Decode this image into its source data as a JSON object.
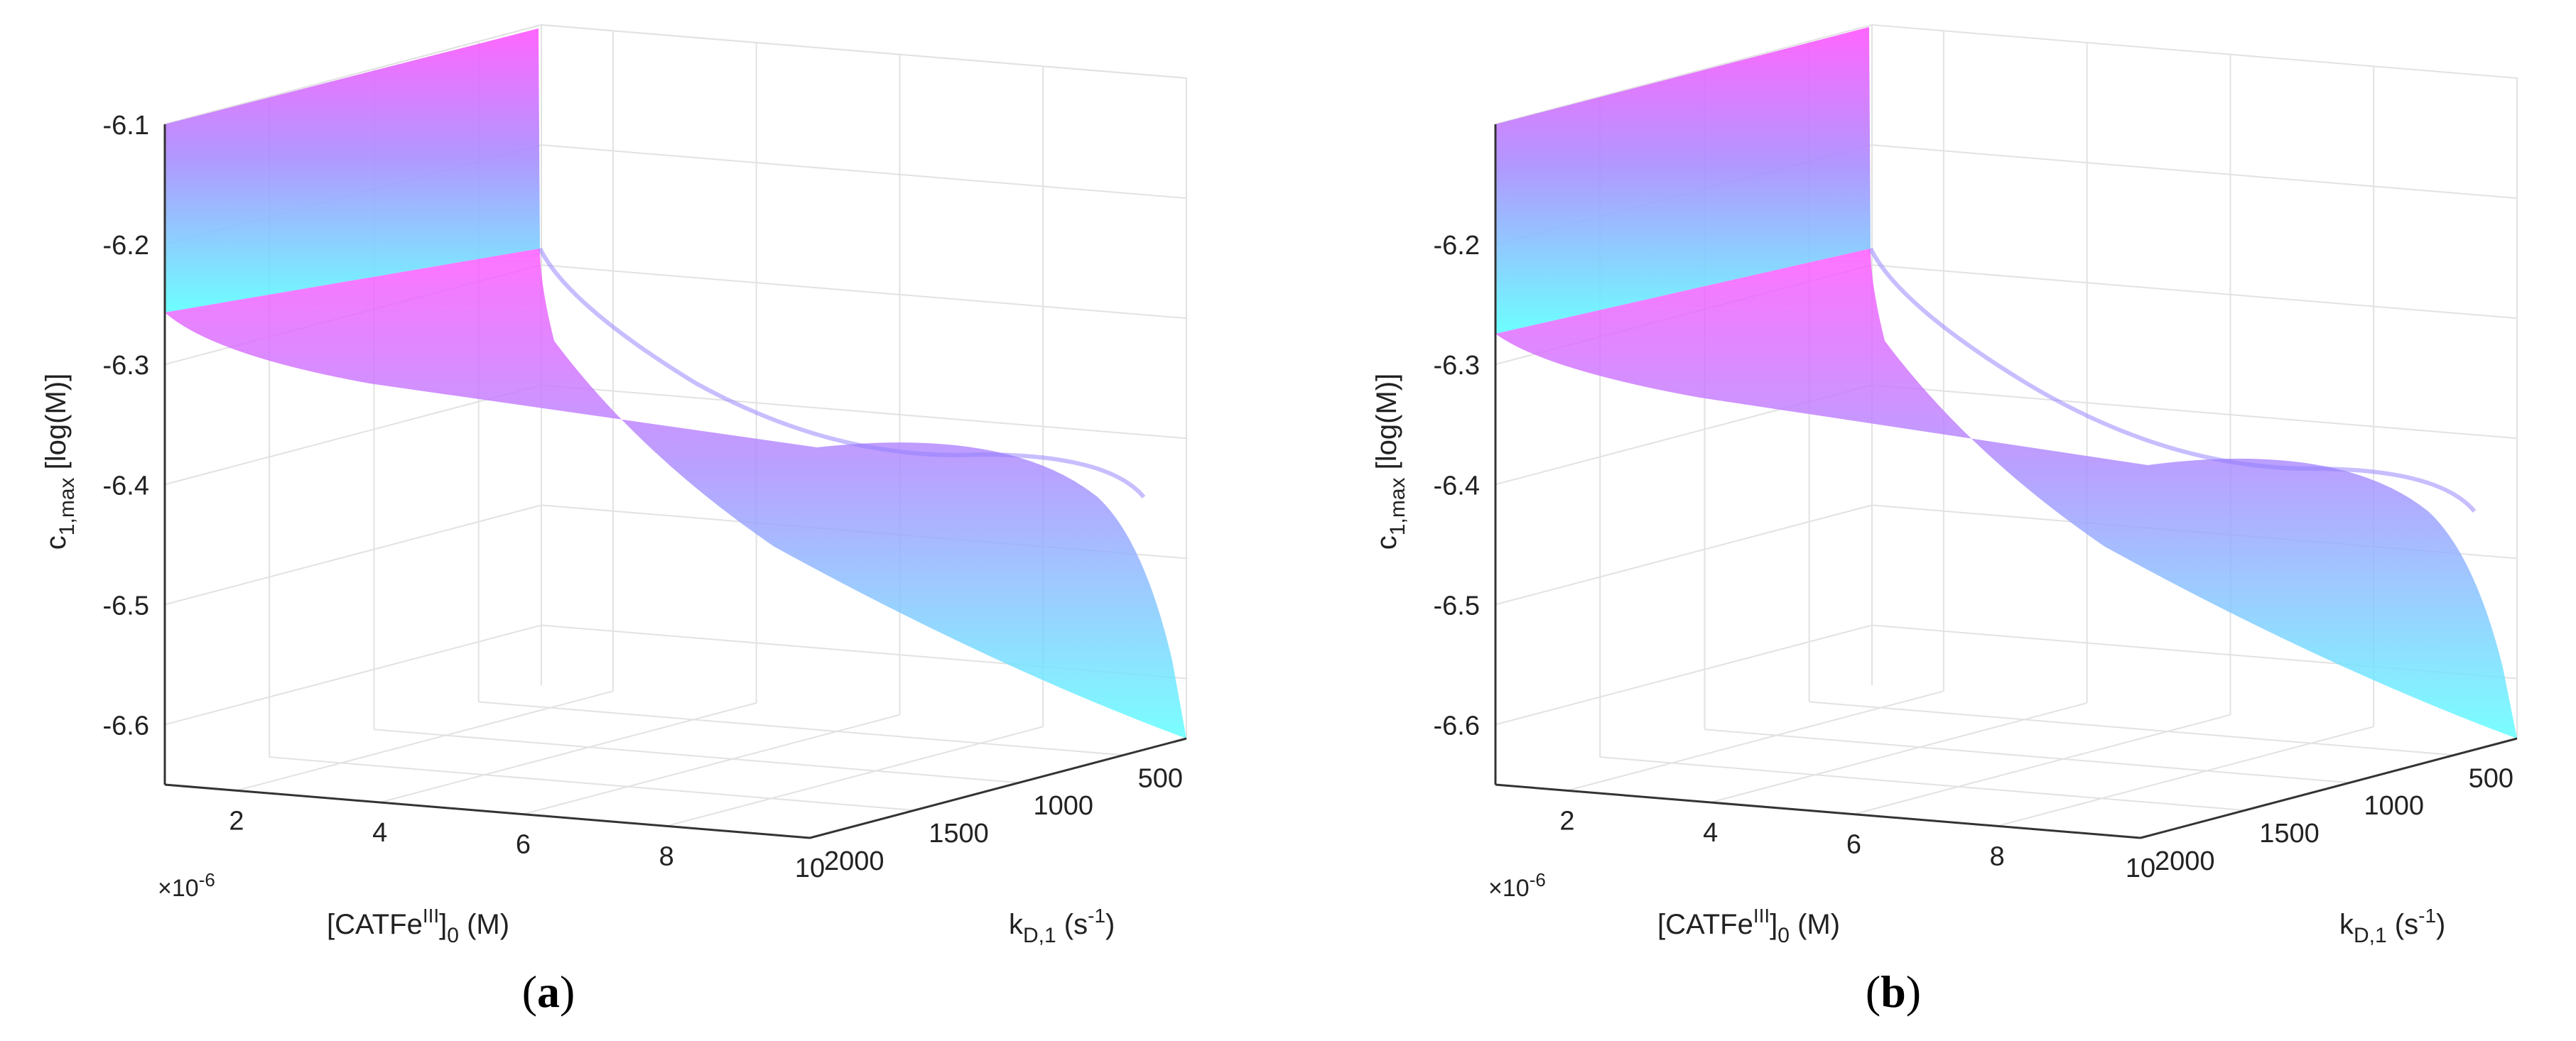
{
  "figure": {
    "panels": [
      {
        "label_open": "(",
        "label_letter": "a",
        "label_close": ")"
      },
      {
        "label_open": "(",
        "label_letter": "b",
        "label_close": ")"
      }
    ]
  },
  "colors": {
    "top": "#ff55ff",
    "mid": "#a98cff",
    "bottom": "#5cffff",
    "grid": "#e2e2e2",
    "axis": "#333333"
  },
  "chart_data": [
    {
      "type": "surface",
      "panel": "a",
      "zlabel_main": "c",
      "zlabel_sub": "1,max",
      "zlabel_unit": " [log(M)]",
      "xlabel_main": "[CATFe",
      "xlabel_sup": "III",
      "xlabel_bracket": "]",
      "xlabel_sub": "0",
      "xlabel_unit": " (M)",
      "xlabel_exponent_base": "×10",
      "xlabel_exponent_power": "-6",
      "ylabel_main": "k",
      "ylabel_sub": "D,1",
      "ylabel_unit_open": " (s",
      "ylabel_unit_sup": "-1",
      "ylabel_unit_close": ")",
      "x_ticks": [
        "2",
        "4",
        "6",
        "8",
        "10"
      ],
      "y_ticks": [
        "500",
        "1000",
        "1500",
        "2000"
      ],
      "z_ticks": [
        "-6.1",
        "-6.2",
        "-6.3",
        "-6.4",
        "-6.5",
        "-6.6"
      ],
      "zlim": [
        -6.65,
        -6.1
      ],
      "xlim": [
        1,
        10
      ],
      "ylim": [
        200,
        2000
      ],
      "surface_edges": {
        "x_at_kD_min": [
          {
            "x": 1,
            "z": -6.27
          },
          {
            "x": 4,
            "z": -6.34
          },
          {
            "x": 6,
            "z": -6.39
          },
          {
            "x": 8,
            "z": -6.46
          },
          {
            "x": 10,
            "z": -6.62
          }
        ],
        "kD_at_x_min": [
          {
            "kD": 200,
            "z": -6.27
          },
          {
            "kD": 1000,
            "z": -6.22
          },
          {
            "kD": 2000,
            "z": -6.1
          }
        ],
        "kD_at_x_max": [
          {
            "kD": 200,
            "z": -6.62
          },
          {
            "kD": 500,
            "z": -6.55
          },
          {
            "kD": 1000,
            "z": -6.48
          },
          {
            "kD": 1400,
            "z": -6.4
          },
          {
            "kD": 2000,
            "z": -6.37
          }
        ]
      }
    },
    {
      "type": "surface",
      "panel": "b",
      "zlabel_main": "c",
      "zlabel_sub": "1,max",
      "zlabel_unit": " [log(M)]",
      "xlabel_main": "[CATFe",
      "xlabel_sup": "III",
      "xlabel_bracket": "]",
      "xlabel_sub": "0",
      "xlabel_unit": " (M)",
      "xlabel_exponent_base": "×10",
      "xlabel_exponent_power": "-6",
      "ylabel_main": "k",
      "ylabel_sub": "D,1",
      "ylabel_unit_open": " (s",
      "ylabel_unit_sup": "-1",
      "ylabel_unit_close": ")",
      "x_ticks": [
        "2",
        "4",
        "6",
        "8",
        "10"
      ],
      "y_ticks": [
        "500",
        "1000",
        "1500",
        "2000"
      ],
      "z_ticks": [
        "-6.2",
        "-6.3",
        "-6.4",
        "-6.5",
        "-6.6"
      ],
      "zlim": [
        -6.65,
        -6.1
      ],
      "xlim": [
        1,
        10
      ],
      "ylim": [
        200,
        2000
      ],
      "surface_edges": {
        "x_at_kD_min": [
          {
            "x": 1,
            "z": -6.28
          },
          {
            "x": 4,
            "z": -6.35
          },
          {
            "x": 6,
            "z": -6.4
          },
          {
            "x": 8,
            "z": -6.47
          },
          {
            "x": 10,
            "z": -6.62
          }
        ],
        "kD_at_x_min": [
          {
            "kD": 200,
            "z": -6.28
          },
          {
            "kD": 1000,
            "z": -6.22
          },
          {
            "kD": 2000,
            "z": -6.1
          }
        ],
        "kD_at_x_max": [
          {
            "kD": 200,
            "z": -6.62
          },
          {
            "kD": 500,
            "z": -6.56
          },
          {
            "kD": 1000,
            "z": -6.49
          },
          {
            "kD": 1400,
            "z": -6.41
          },
          {
            "kD": 2000,
            "z": -6.38
          }
        ]
      }
    }
  ]
}
